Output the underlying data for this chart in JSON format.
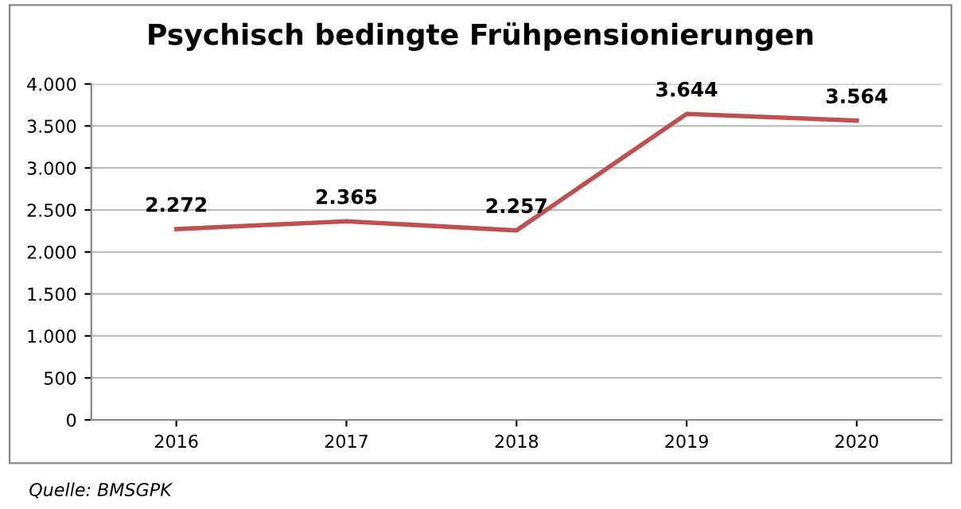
{
  "chart_data": {
    "type": "line",
    "title": "Psychisch bedingte Frühpensionierungen",
    "categories": [
      "2016",
      "2017",
      "2018",
      "2019",
      "2020"
    ],
    "series": [
      {
        "color": "#c0504d",
        "values": [
          2272,
          2365,
          2257,
          3644,
          3564
        ],
        "value_labels": [
          "2.272",
          "2.365",
          "2.257",
          "3.644",
          "3.564"
        ]
      }
    ],
    "ylim": [
      0,
      4000
    ],
    "yticks": [
      0,
      500,
      {
        "value": 1000,
        "label": "1.000"
      },
      {
        "value": 1500,
        "label": "1.500"
      },
      {
        "value": 2000,
        "label": "2.000"
      },
      {
        "value": 2500,
        "label": "2.500"
      },
      {
        "value": 3000,
        "label": "3.000"
      },
      {
        "value": 3500,
        "label": "3.500"
      },
      {
        "value": 4000,
        "label": "4.000"
      }
    ],
    "grid": "y",
    "legend": false,
    "marker": "none",
    "line_style": "solid",
    "annotations": [
      "Quelle: BMSGPK"
    ]
  }
}
